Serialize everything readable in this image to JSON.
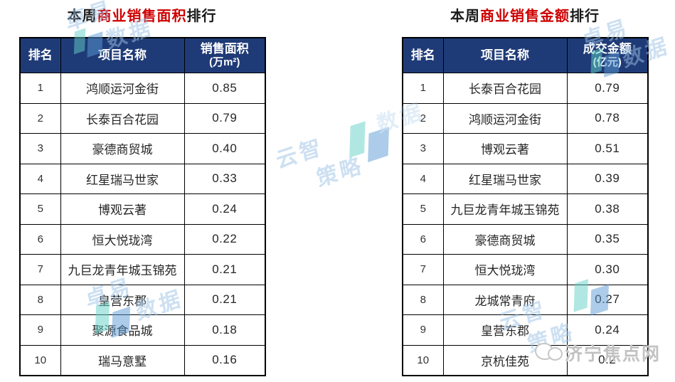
{
  "titles": {
    "left": {
      "prefix": "本周",
      "highlight": "商业销售面积",
      "suffix": "排行"
    },
    "right": {
      "prefix": "本周",
      "highlight": "商业销售金额",
      "suffix": "排行"
    }
  },
  "tables": [
    {
      "headers": {
        "rank": "排名",
        "name": "项目名称",
        "value1": "销售面积",
        "value2": "(万m²)"
      },
      "rows": [
        {
          "rank": "1",
          "name": "鸿顺运河金街",
          "value": "0.85"
        },
        {
          "rank": "2",
          "name": "长泰百合花园",
          "value": "0.79"
        },
        {
          "rank": "3",
          "name": "豪德商贸城",
          "value": "0.40"
        },
        {
          "rank": "4",
          "name": "红星瑞马世家",
          "value": "0.33"
        },
        {
          "rank": "5",
          "name": "博观云著",
          "value": "0.24"
        },
        {
          "rank": "6",
          "name": "恒大悦珑湾",
          "value": "0.22"
        },
        {
          "rank": "7",
          "name": "九巨龙青年城玉锦苑",
          "value": "0.21"
        },
        {
          "rank": "8",
          "name": "皇营东郡",
          "value": "0.21"
        },
        {
          "rank": "9",
          "name": "聚源食品城",
          "value": "0.18"
        },
        {
          "rank": "10",
          "name": "瑞马意墅",
          "value": "0.16"
        }
      ]
    },
    {
      "headers": {
        "rank": "排名",
        "name": "项目名称",
        "value1": "成交金额",
        "value2": "(亿元)"
      },
      "rows": [
        {
          "rank": "1",
          "name": "长泰百合花园",
          "value": "0.79"
        },
        {
          "rank": "2",
          "name": "鸿顺运河金街",
          "value": "0.78"
        },
        {
          "rank": "3",
          "name": "博观云著",
          "value": "0.51"
        },
        {
          "rank": "4",
          "name": "红星瑞马世家",
          "value": "0.39"
        },
        {
          "rank": "5",
          "name": "九巨龙青年城玉锦苑",
          "value": "0.38"
        },
        {
          "rank": "6",
          "name": "豪德商贸城",
          "value": "0.35"
        },
        {
          "rank": "7",
          "name": "恒大悦珑湾",
          "value": "0.30"
        },
        {
          "rank": "8",
          "name": "龙城常青府",
          "value": "0.27"
        },
        {
          "rank": "9",
          "name": "皇营东郡",
          "value": "0.24"
        },
        {
          "rank": "10",
          "name": "京杭佳苑",
          "value": "0.2"
        }
      ]
    }
  ],
  "chart_data": [
    {
      "type": "table",
      "title": "本周商业销售面积排行",
      "columns": [
        "排名",
        "项目名称",
        "销售面积(万m²)"
      ],
      "rows": [
        [
          "1",
          "鸿顺运河金街",
          0.85
        ],
        [
          "2",
          "长泰百合花园",
          0.79
        ],
        [
          "3",
          "豪德商贸城",
          0.4
        ],
        [
          "4",
          "红星瑞马世家",
          0.33
        ],
        [
          "5",
          "博观云著",
          0.24
        ],
        [
          "6",
          "恒大悦珑湾",
          0.22
        ],
        [
          "7",
          "九巨龙青年城玉锦苑",
          0.21
        ],
        [
          "8",
          "皇营东郡",
          0.21
        ],
        [
          "9",
          "聚源食品城",
          0.18
        ],
        [
          "10",
          "瑞马意墅",
          0.16
        ]
      ]
    },
    {
      "type": "table",
      "title": "本周商业销售金额排行",
      "columns": [
        "排名",
        "项目名称",
        "成交金额(亿元)"
      ],
      "rows": [
        [
          "1",
          "长泰百合花园",
          0.79
        ],
        [
          "2",
          "鸿顺运河金街",
          0.78
        ],
        [
          "3",
          "博观云著",
          0.51
        ],
        [
          "4",
          "红星瑞马世家",
          0.39
        ],
        [
          "5",
          "九巨龙青年城玉锦苑",
          0.38
        ],
        [
          "6",
          "豪德商贸城",
          0.35
        ],
        [
          "7",
          "恒大悦珑湾",
          0.3
        ],
        [
          "8",
          "龙城常青府",
          0.27
        ],
        [
          "9",
          "皇营东郡",
          0.24
        ],
        [
          "10",
          "京杭佳苑",
          0.2
        ]
      ]
    }
  ],
  "watermarks": {
    "zhuoyi": {
      "line1": "卓易",
      "line2": "数据"
    },
    "yunzhi": {
      "line1": "云智",
      "line2": "策略"
    }
  },
  "badge": {
    "text": "济宁焦点网"
  },
  "colors": {
    "header_bg": "#1f3b77",
    "header_text": "#ffffff",
    "title_red": "#ce0000",
    "title_black": "#1a1a1a",
    "cell_text": "#262626",
    "table_border": "#000000",
    "watermark_blue": "#9dc3e6",
    "watermark_teal": "#63d1c6",
    "watermark_dark_blue": "#5b9bd5",
    "wechat_gray": "#c2c2c2"
  }
}
